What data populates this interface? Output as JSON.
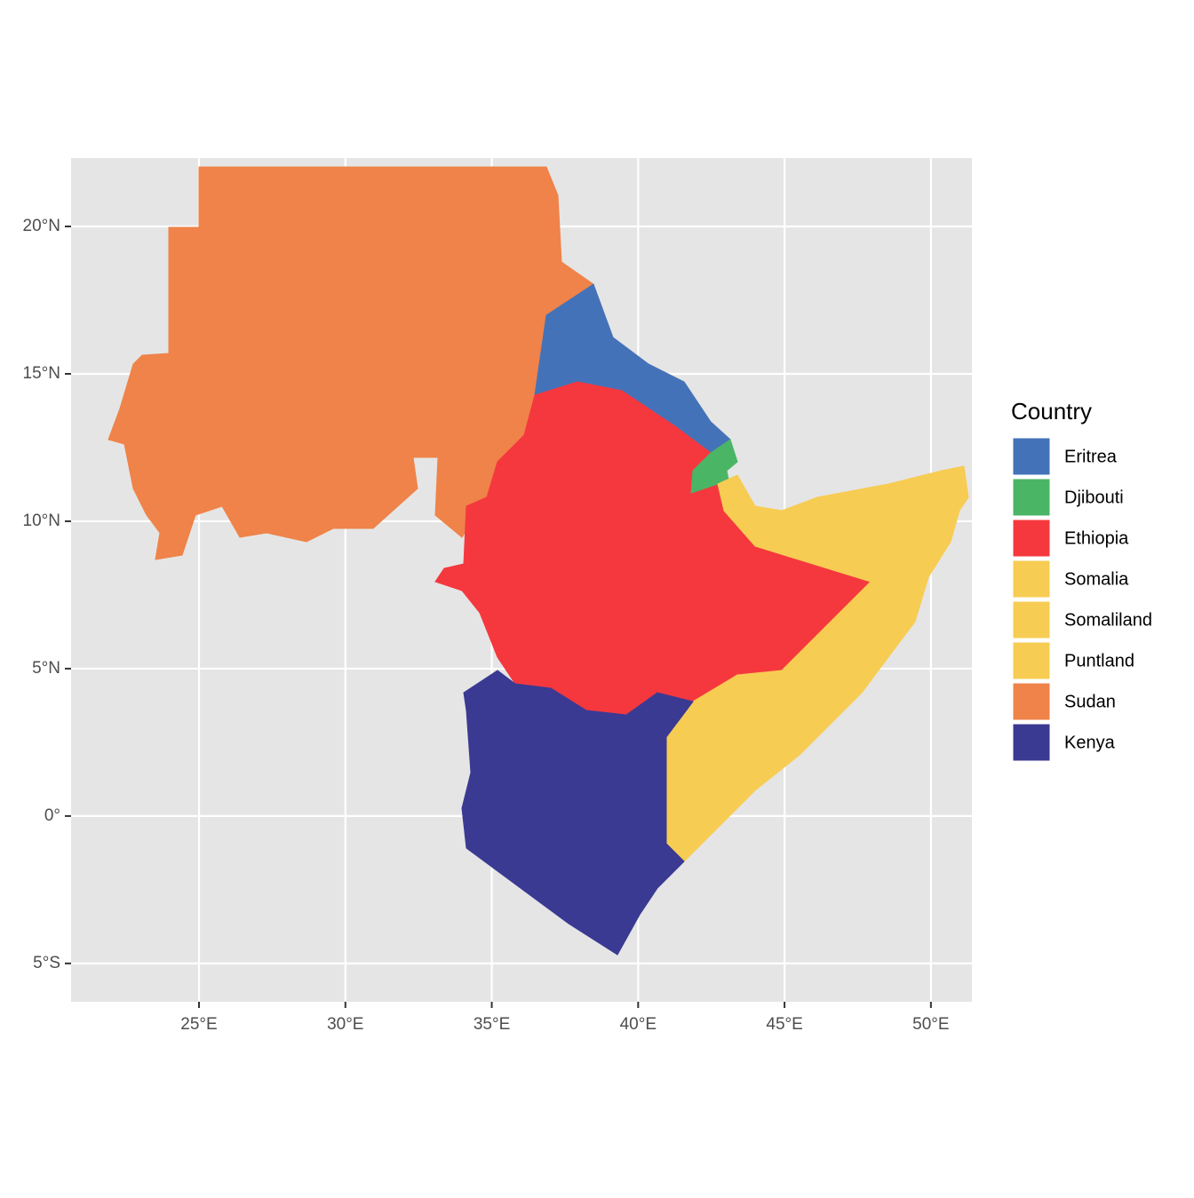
{
  "chart_data": {
    "type": "map",
    "legend_title": "Country",
    "legend": [
      {
        "name": "Eritrea",
        "color": "#4472b8"
      },
      {
        "name": "Djibouti",
        "color": "#4bb566"
      },
      {
        "name": "Ethiopia",
        "color": "#f5383e"
      },
      {
        "name": "Somalia",
        "color": "#f7cc53"
      },
      {
        "name": "Somaliland",
        "color": "#f7cc53"
      },
      {
        "name": "Puntland",
        "color": "#f7cc53"
      },
      {
        "name": "Sudan",
        "color": "#ef8349"
      },
      {
        "name": "Kenya",
        "color": "#3a3a93"
      }
    ],
    "xlim": [
      20.63,
      51.4
    ],
    "ylim": [
      -6.3,
      22.32
    ],
    "xticks": [
      {
        "value": 25,
        "label": "25°E"
      },
      {
        "value": 30,
        "label": "30°E"
      },
      {
        "value": 35,
        "label": "35°E"
      },
      {
        "value": 40,
        "label": "40°E"
      },
      {
        "value": 45,
        "label": "45°E"
      },
      {
        "value": 50,
        "label": "50°E"
      }
    ],
    "yticks": [
      {
        "value": -5,
        "label": "5°S"
      },
      {
        "value": 0,
        "label": "0°"
      },
      {
        "value": 5,
        "label": "5°N"
      },
      {
        "value": 10,
        "label": "10°N"
      },
      {
        "value": 15,
        "label": "15°N"
      },
      {
        "value": 20,
        "label": "20°N"
      }
    ],
    "grid": true
  }
}
